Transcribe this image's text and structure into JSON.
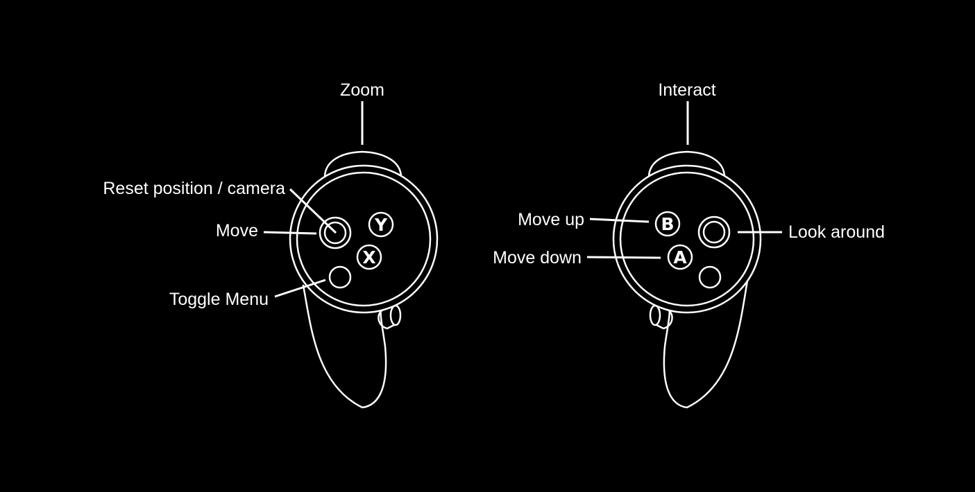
{
  "colors": {
    "background": "#000000",
    "line": "#ffffff",
    "text": "#ffffff"
  },
  "left_controller": {
    "labels": {
      "zoom": "Zoom",
      "reset": "Reset position / camera",
      "move": "Move",
      "toggle_menu": "Toggle Menu"
    },
    "buttons": {
      "y": "Y",
      "x": "X"
    }
  },
  "right_controller": {
    "labels": {
      "interact": "Interact",
      "move_up": "Move up",
      "move_down": "Move down",
      "look_around": "Look around"
    },
    "buttons": {
      "b": "B",
      "a": "A"
    }
  }
}
